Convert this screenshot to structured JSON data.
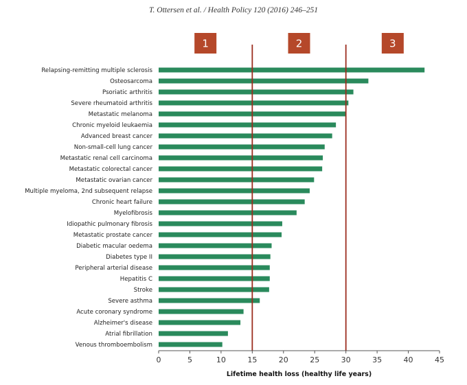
{
  "header": {
    "citation": "T. Ottersen et al. / Health Policy 120 (2016) 246–251"
  },
  "colors": {
    "bar": "#2a8a5c",
    "threshold_line": "#9b2c1e",
    "zone_box": "#b5482a",
    "axis": "#555555"
  },
  "chart_data": {
    "type": "bar",
    "orientation": "horizontal",
    "title": "",
    "xlabel": "Lifetime health loss (healthy life years)",
    "ylabel": "",
    "xlim": [
      0,
      45
    ],
    "x_ticks": [
      "0",
      "5",
      "10",
      "15",
      "20",
      "25",
      "30",
      "35",
      "40",
      "45"
    ],
    "grid": false,
    "categories": [
      "Relapsing-remitting multiple sclerosis",
      "Osteosarcoma",
      "Psoriatic arthritis",
      "Severe rheumatoid arthritis",
      "Metastatic melanoma",
      "Chronic myeloid leukaemia",
      "Advanced breast cancer",
      "Non-small-cell lung cancer",
      "Metastatic renal cell carcinoma",
      "Metastatic colorectal cancer",
      "Metastatic ovarian cancer",
      "Multiple myeloma, 2nd subsequent relapse",
      "Chronic heart failure",
      "Myelofibrosis",
      "Idiopathic pulmonary fibrosis",
      "Metastatic prostate cancer",
      "Diabetic macular oedema",
      "Diabetes type II",
      "Peripheral arterial disease",
      "Hepatitis C",
      "Stroke",
      "Severe asthma",
      "Acute coronary syndrome",
      "Alzheimer's disease",
      "Atrial fibrillation",
      "Venous thromboembolism"
    ],
    "values": [
      42.6,
      33.6,
      31.2,
      30.4,
      30.0,
      28.4,
      27.8,
      26.6,
      26.3,
      26.2,
      24.9,
      24.2,
      23.4,
      22.1,
      19.8,
      19.7,
      18.1,
      17.9,
      17.8,
      17.8,
      17.7,
      16.2,
      13.6,
      13.1,
      11.1,
      10.2
    ],
    "thresholds": [
      15,
      30
    ],
    "zones": [
      "1",
      "2",
      "3"
    ]
  }
}
